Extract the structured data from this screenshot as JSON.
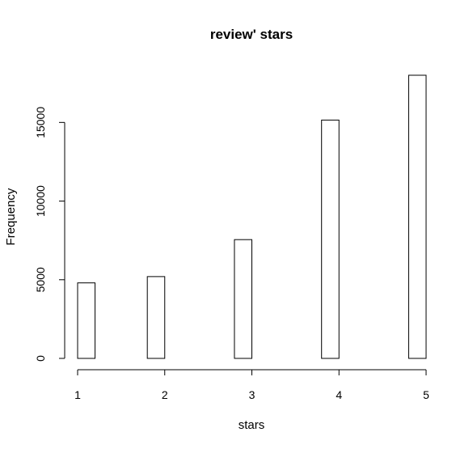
{
  "chart_data": {
    "type": "bar",
    "title": "review' stars",
    "xlabel": "stars",
    "ylabel": "Frequency",
    "bins": [
      {
        "start": 1.0,
        "end": 1.2,
        "value": 4800
      },
      {
        "start": 1.2,
        "end": 1.4,
        "value": 0
      },
      {
        "start": 1.4,
        "end": 1.6,
        "value": 0
      },
      {
        "start": 1.6,
        "end": 1.8,
        "value": 0
      },
      {
        "start": 1.8,
        "end": 2.0,
        "value": 5200
      },
      {
        "start": 2.0,
        "end": 2.2,
        "value": 0
      },
      {
        "start": 2.2,
        "end": 2.4,
        "value": 0
      },
      {
        "start": 2.4,
        "end": 2.6,
        "value": 0
      },
      {
        "start": 2.6,
        "end": 2.8,
        "value": 0
      },
      {
        "start": 2.8,
        "end": 3.0,
        "value": 7550
      },
      {
        "start": 3.0,
        "end": 3.2,
        "value": 0
      },
      {
        "start": 3.2,
        "end": 3.4,
        "value": 0
      },
      {
        "start": 3.4,
        "end": 3.6,
        "value": 0
      },
      {
        "start": 3.6,
        "end": 3.8,
        "value": 0
      },
      {
        "start": 3.8,
        "end": 4.0,
        "value": 15150
      },
      {
        "start": 4.0,
        "end": 4.2,
        "value": 0
      },
      {
        "start": 4.2,
        "end": 4.4,
        "value": 0
      },
      {
        "start": 4.4,
        "end": 4.6,
        "value": 0
      },
      {
        "start": 4.6,
        "end": 4.8,
        "value": 0
      },
      {
        "start": 4.8,
        "end": 5.0,
        "value": 18000
      }
    ],
    "xlim": [
      1,
      5
    ],
    "ylim": [
      0,
      18000
    ],
    "x_ticks": [
      1,
      2,
      3,
      4,
      5
    ],
    "y_ticks": [
      0,
      5000,
      10000,
      15000
    ],
    "grid": false,
    "colors": {
      "bar_fill": "#ffffff",
      "bar_stroke": "#000000"
    }
  }
}
